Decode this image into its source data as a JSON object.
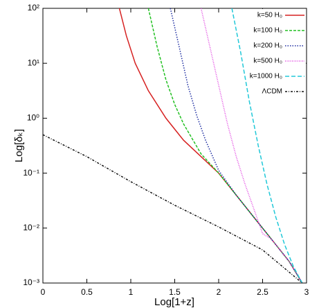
{
  "chart_data": {
    "type": "line",
    "xlabel": "Log[1+z]",
    "ylabel": "Log[δₖ]",
    "xlim": [
      0,
      3
    ],
    "xticks": [
      0,
      0.5,
      1,
      1.5,
      2,
      2.5,
      3
    ],
    "ylim": [
      0.001,
      100
    ],
    "yscale": "log",
    "yticks": [
      {
        "value": 0.001,
        "label": "10⁻³"
      },
      {
        "value": 0.01,
        "label": "10⁻²"
      },
      {
        "value": 0.1,
        "label": "10⁻¹"
      },
      {
        "value": 1,
        "label": "10⁰"
      },
      {
        "value": 10,
        "label": "10¹"
      },
      {
        "value": 100,
        "label": "10²"
      }
    ],
    "legend": "upper right",
    "series": [
      {
        "name": "k=50 H₀",
        "color": "#d62020",
        "x": [
          0.87,
          0.95,
          1.05,
          1.2,
          1.4,
          1.6,
          1.8,
          2.0,
          2.2,
          2.4,
          2.6,
          2.8,
          2.95
        ],
        "values": [
          100,
          31.6,
          10,
          3.16,
          1,
          0.398,
          0.2,
          0.1,
          0.0398,
          0.0158,
          0.0063,
          0.0025,
          0.001
        ]
      },
      {
        "name": "k=100 H₀",
        "color": "#22c022",
        "x": [
          1.2,
          1.3,
          1.4,
          1.5,
          1.6,
          1.8,
          2.0,
          2.2,
          2.4,
          2.6,
          2.8,
          2.95
        ],
        "values": [
          100,
          20,
          5,
          1.78,
          0.79,
          0.224,
          0.1,
          0.0398,
          0.0158,
          0.0063,
          0.0025,
          0.001
        ]
      },
      {
        "name": "k=200 H₀",
        "color": "#1a2aa0",
        "x": [
          1.45,
          1.55,
          1.65,
          1.75,
          1.85,
          2.0,
          2.2,
          2.4,
          2.6,
          2.8,
          2.95
        ],
        "values": [
          100,
          20,
          3.98,
          1.12,
          0.398,
          0.112,
          0.0398,
          0.0158,
          0.0063,
          0.0025,
          0.001
        ]
      },
      {
        "name": "k=500 H₀",
        "color": "#e040e0",
        "x": [
          1.8,
          1.9,
          2.0,
          2.1,
          2.2,
          2.3,
          2.4,
          2.5,
          2.6,
          2.8,
          2.95
        ],
        "values": [
          100,
          20,
          3.98,
          0.79,
          0.2,
          0.063,
          0.0224,
          0.0079,
          0.0063,
          0.0025,
          0.001
        ]
      },
      {
        "name": "k=1000 H₀",
        "color": "#20c8d8",
        "x": [
          2.15,
          2.25,
          2.35,
          2.45,
          2.55,
          2.65,
          2.75,
          2.85,
          2.95
        ],
        "values": [
          100,
          15.8,
          2,
          0.316,
          0.063,
          0.0158,
          0.005,
          0.002,
          0.001
        ]
      },
      {
        "name": "ΛCDM",
        "color": "#111111",
        "x": [
          0,
          0.5,
          1,
          1.5,
          2,
          2.5,
          2.95
        ],
        "values": [
          0.5,
          0.2,
          0.07,
          0.026,
          0.0105,
          0.004,
          0.001
        ]
      }
    ]
  }
}
